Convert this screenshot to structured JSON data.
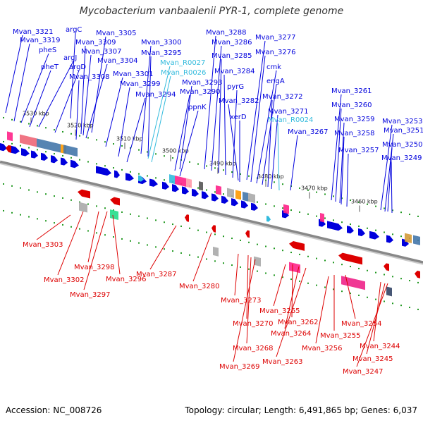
{
  "title": "Mycobacterium vanbaalenii PYR-1, complete genome",
  "footer": {
    "accession": "Accession: NC_008726",
    "topology": "Topology: circular; Length: 6,491,865 bp; Genes: 6,037"
  },
  "colors": {
    "forward_gene": "#0000dd",
    "reverse_gene": "#dd0000",
    "rna_gene": "#33bbdd",
    "backbone": "#888888",
    "tick_marks": "#229922"
  },
  "scale_ticks": [
    "3530 kbp",
    "3520 kbp",
    "3510 kbp",
    "3500 kbp",
    "3490 kbp",
    "3480 kbp",
    "3470 kbp",
    "3460 kbp"
  ],
  "forward_labels": [
    "Mvan_3321",
    "argC",
    "Mvan_3319",
    "pheS",
    "argJ",
    "pheT",
    "argD",
    "Mvan_3309",
    "Mvan_3305",
    "Mvan_3307",
    "Mvan_3304",
    "Mvan_3308",
    "Mvan_3301",
    "Mvan_3300",
    "Mvan_3295",
    "Mvan_R0027",
    "Mvan_R0026",
    "Mvan_3299",
    "Mvan_3294",
    "Mvan_3293",
    "Mvan_3290",
    "ppnK",
    "Mvan_3288",
    "Mvan_3286",
    "Mvan_3285",
    "Mvan_3284",
    "pyrG",
    "Mvan_3282",
    "xerD",
    "Mvan_3277",
    "Mvan_3276",
    "cmk",
    "engA",
    "Mvan_3272",
    "Mvan_3271",
    "Mvan_R0024",
    "Mvan_3267",
    "Mvan_3261",
    "Mvan_3260",
    "Mvan_3259",
    "Mvan_3258",
    "Mvan_3257",
    "Mvan_3253",
    "Mvan_3251",
    "Mvan_3250",
    "Mvan_3249"
  ],
  "reverse_labels": [
    "Mvan_3303",
    "Mvan_3302",
    "Mvan_3298",
    "Mvan_3297",
    "Mvan_3296",
    "Mvan_3287",
    "Mvan_3280",
    "Mvan_3273",
    "Mvan_3270",
    "Mvan_3268",
    "Mvan_3269",
    "Mvan_3265",
    "Mvan_3262",
    "Mvan_3264",
    "Mvan_3263",
    "Mvan_3254",
    "Mvan_3255",
    "Mvan_3256",
    "Mvan_3244",
    "Mvan_3245",
    "Mvan_3247"
  ]
}
